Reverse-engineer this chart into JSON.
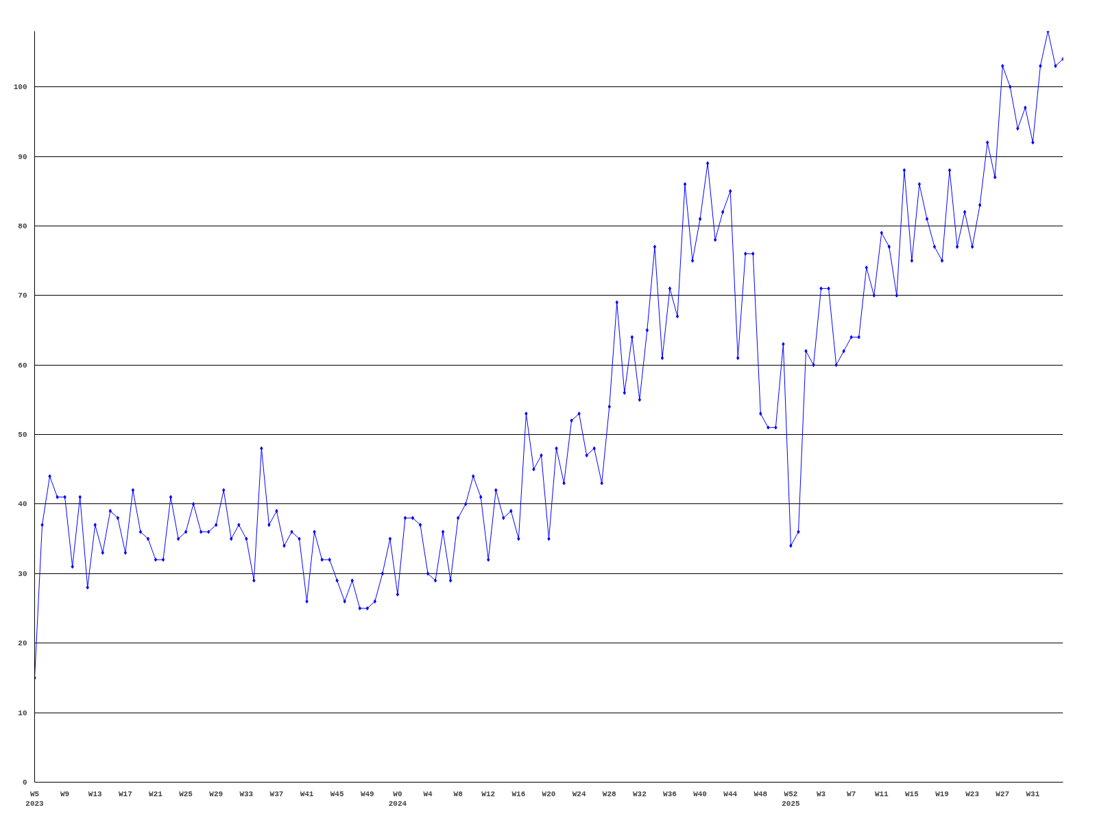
{
  "chart_data": {
    "type": "line",
    "categories": [
      "W5\n2023",
      null,
      null,
      null,
      "W9",
      null,
      null,
      null,
      "W13",
      null,
      null,
      null,
      "W17",
      null,
      null,
      null,
      "W21",
      null,
      null,
      null,
      "W25",
      null,
      null,
      null,
      "W29",
      null,
      null,
      null,
      "W33",
      null,
      null,
      null,
      "W37",
      null,
      null,
      null,
      "W41",
      null,
      null,
      null,
      "W45",
      null,
      null,
      null,
      "W49",
      null,
      null,
      null,
      "W0\n2024",
      null,
      null,
      null,
      "W4",
      null,
      null,
      null,
      "W8",
      null,
      null,
      null,
      "W12",
      null,
      null,
      null,
      "W16",
      null,
      null,
      null,
      "W20",
      null,
      null,
      null,
      "W24",
      null,
      null,
      null,
      "W28",
      null,
      null,
      null,
      "W32",
      null,
      null,
      null,
      "W36",
      null,
      null,
      null,
      "W40",
      null,
      null,
      null,
      "W44",
      null,
      null,
      null,
      "W48",
      null,
      null,
      null,
      "W52\n2025",
      null,
      null,
      null,
      "W3",
      null,
      null,
      null,
      "W7",
      null,
      null,
      null,
      "W11",
      null,
      null,
      null,
      "W15",
      null,
      null,
      null,
      "W19",
      null,
      null,
      null,
      "W23",
      null,
      null,
      null,
      "W27",
      null,
      null,
      null,
      "W31",
      null,
      null,
      null,
      null
    ],
    "series": [
      {
        "color": "#0000ff",
        "values": [
          15,
          37,
          44,
          41,
          41,
          31,
          41,
          28,
          37,
          33,
          39,
          38,
          33,
          42,
          36,
          35,
          32,
          32,
          41,
          35,
          36,
          40,
          36,
          36,
          37,
          42,
          35,
          37,
          35,
          29,
          48,
          37,
          39,
          34,
          36,
          35,
          26,
          36,
          32,
          32,
          29,
          26,
          29,
          25,
          25,
          26,
          30,
          35,
          27,
          38,
          38,
          37,
          30,
          29,
          36,
          29,
          38,
          40,
          44,
          41,
          32,
          42,
          38,
          39,
          35,
          53,
          45,
          47,
          35,
          48,
          43,
          52,
          53,
          47,
          48,
          43,
          54,
          69,
          56,
          64,
          55,
          65,
          77,
          61,
          71,
          67,
          86,
          75,
          81,
          89,
          78,
          82,
          85,
          61,
          76,
          76,
          53,
          51,
          51,
          63,
          34,
          36,
          62,
          60,
          71,
          71,
          60,
          62,
          64,
          64,
          74,
          70,
          79,
          77,
          70,
          88,
          75,
          86,
          81,
          77,
          75,
          88,
          77,
          82,
          77,
          83,
          92,
          87,
          103,
          100,
          94,
          97,
          92,
          103,
          108,
          103,
          104
        ]
      }
    ],
    "ylim": [
      0,
      108
    ],
    "yticks": [
      0,
      10,
      20,
      30,
      40,
      50,
      60,
      70,
      80,
      90,
      100
    ],
    "grid": "y",
    "marker": "diamond",
    "line_style": "solid"
  }
}
